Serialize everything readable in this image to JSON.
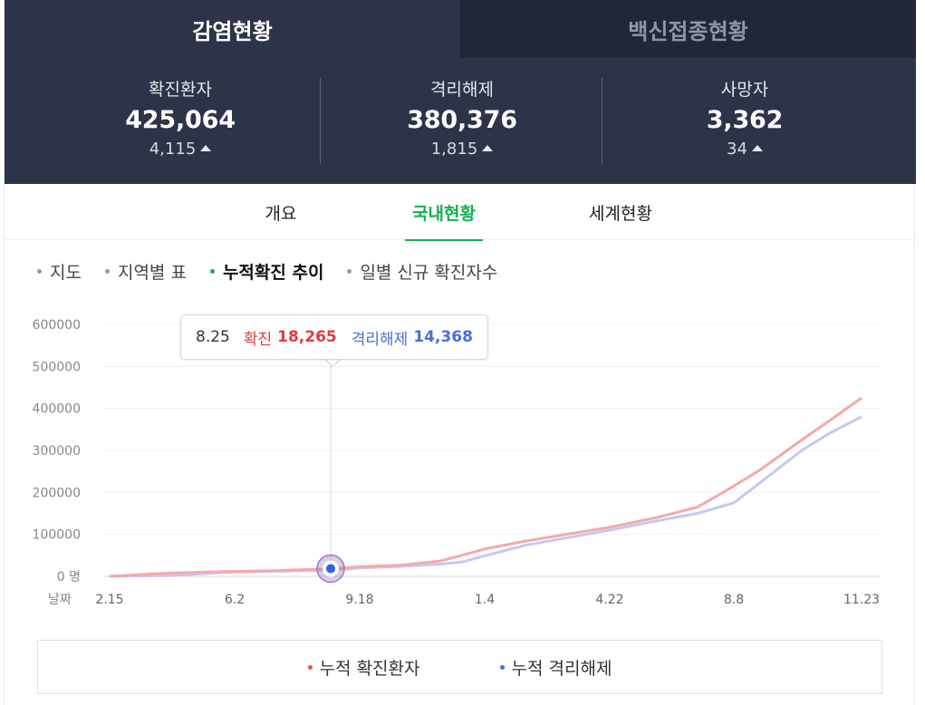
{
  "top_tabs": [
    {
      "label": "감염현황",
      "active": true
    },
    {
      "label": "백신접종현황",
      "active": false
    }
  ],
  "stats": [
    {
      "label": "확진환자",
      "value": "425,064",
      "delta": "4,115"
    },
    {
      "label": "격리해제",
      "value": "380,376",
      "delta": "1,815"
    },
    {
      "label": "사망자",
      "value": "3,362",
      "delta": "34"
    }
  ],
  "sub_tabs": [
    {
      "label": "개요"
    },
    {
      "label": "국내현황",
      "active": true
    },
    {
      "label": "세계현황"
    }
  ],
  "chart_menu": [
    {
      "label": "지도"
    },
    {
      "label": "지역별 표"
    },
    {
      "label": "누적확진 추이",
      "active": true
    },
    {
      "label": "일별 신규 확진자수"
    }
  ],
  "tooltip": {
    "date": "8.25",
    "confirmed_label": "확진",
    "confirmed_value": "18,265",
    "released_label": "격리해제",
    "released_value": "14,368"
  },
  "chart_data": {
    "type": "line",
    "x_axis_label": "날짜",
    "y_ticks": [
      "0 명",
      "100000",
      "200000",
      "300000",
      "400000",
      "500000",
      "600000"
    ],
    "x_ticks": [
      "2.15",
      "6.2",
      "9.18",
      "1.4",
      "4.22",
      "8.8",
      "11.23"
    ],
    "ylim": [
      0,
      600000
    ],
    "grid": true,
    "legend_position": "bottom",
    "x": [
      "2.15",
      "3.15",
      "4.15",
      "6.2",
      "7.15",
      "8.25",
      "9.18",
      "11.1",
      "12.1",
      "12.20",
      "1.4",
      "2.15",
      "4.22",
      "6.1",
      "7.1",
      "8.8",
      "9.1",
      "10.1",
      "11.1",
      "11.23"
    ],
    "series": [
      {
        "name": "누적 확진환자",
        "color": "#f7a8a8",
        "values": [
          0,
          8000,
          10500,
          11600,
          13500,
          18265,
          22700,
          27000,
          36000,
          50000,
          65000,
          84000,
          117000,
          140000,
          165000,
          215000,
          255000,
          325000,
          370000,
          425064
        ]
      },
      {
        "name": "누적 격리해제",
        "color": "#c3c9f2",
        "values": [
          0,
          2000,
          7500,
          10400,
          12000,
          14368,
          19700,
          24000,
          29000,
          34000,
          49000,
          74000,
          110000,
          132000,
          150000,
          175000,
          225000,
          300000,
          340000,
          380376
        ]
      }
    ]
  },
  "legend": [
    {
      "label": "누적 확진환자",
      "color": "#f05050"
    },
    {
      "label": "누적 격리해제",
      "color": "#3a6fe6"
    }
  ]
}
